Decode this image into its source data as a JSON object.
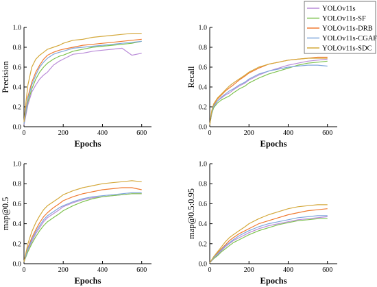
{
  "chart_data": [
    {
      "type": "line",
      "xlabel": "Epochs",
      "ylabel": "Precision",
      "xlim": [
        0,
        650
      ],
      "ylim": [
        0,
        1.0
      ],
      "xticks": [
        "0",
        "200",
        "400",
        "600"
      ],
      "yticks": [
        "0.0",
        "0.2",
        "0.4",
        "0.6",
        "0.8",
        "1.0"
      ],
      "series": [
        {
          "name": "YOLOv11s",
          "color": "#b98bd8",
          "x": [
            0,
            10,
            20,
            40,
            60,
            80,
            100,
            120,
            150,
            180,
            200,
            250,
            300,
            350,
            400,
            450,
            500,
            550,
            600
          ],
          "y": [
            0.02,
            0.12,
            0.22,
            0.35,
            0.42,
            0.48,
            0.52,
            0.55,
            0.62,
            0.66,
            0.68,
            0.73,
            0.74,
            0.76,
            0.77,
            0.78,
            0.79,
            0.72,
            0.74
          ]
        },
        {
          "name": "YOLOv11s-SF",
          "color": "#7ec24f",
          "x": [
            0,
            10,
            20,
            40,
            60,
            80,
            100,
            120,
            150,
            180,
            200,
            250,
            300,
            350,
            400,
            450,
            500,
            550,
            600
          ],
          "y": [
            0.03,
            0.15,
            0.25,
            0.38,
            0.48,
            0.55,
            0.6,
            0.64,
            0.68,
            0.71,
            0.72,
            0.76,
            0.78,
            0.8,
            0.81,
            0.82,
            0.83,
            0.84,
            0.86
          ]
        },
        {
          "name": "YOLOv11s-DRB",
          "color": "#f07a30",
          "x": [
            0,
            10,
            20,
            40,
            60,
            80,
            100,
            120,
            150,
            180,
            200,
            250,
            300,
            350,
            400,
            450,
            500,
            550,
            600
          ],
          "y": [
            0.04,
            0.18,
            0.3,
            0.45,
            0.55,
            0.62,
            0.68,
            0.72,
            0.75,
            0.77,
            0.78,
            0.8,
            0.82,
            0.83,
            0.84,
            0.85,
            0.86,
            0.87,
            0.88
          ]
        },
        {
          "name": "YOLOv11s-CGAF",
          "color": "#7fa6dc",
          "x": [
            0,
            10,
            20,
            40,
            60,
            80,
            100,
            120,
            150,
            180,
            200,
            250,
            300,
            350,
            400,
            450,
            500,
            550,
            600
          ],
          "y": [
            0.03,
            0.16,
            0.28,
            0.42,
            0.52,
            0.6,
            0.65,
            0.69,
            0.73,
            0.75,
            0.76,
            0.79,
            0.8,
            0.81,
            0.82,
            0.83,
            0.84,
            0.85,
            0.86
          ]
        },
        {
          "name": "YOLOv11s-SDC",
          "color": "#d4a83a",
          "x": [
            0,
            10,
            20,
            40,
            60,
            80,
            100,
            120,
            150,
            180,
            200,
            250,
            300,
            350,
            400,
            450,
            500,
            550,
            600
          ],
          "y": [
            0.05,
            0.25,
            0.42,
            0.6,
            0.68,
            0.72,
            0.75,
            0.78,
            0.8,
            0.82,
            0.84,
            0.87,
            0.88,
            0.9,
            0.91,
            0.92,
            0.93,
            0.94,
            0.94
          ]
        }
      ]
    },
    {
      "type": "line",
      "xlabel": "Epochs",
      "ylabel": "Recall",
      "xlim": [
        0,
        650
      ],
      "ylim": [
        0,
        1.0
      ],
      "xticks": [
        "0",
        "200",
        "400",
        "600"
      ],
      "yticks": [
        "0.0",
        "0.2",
        "0.4",
        "0.6",
        "0.8",
        "1.0"
      ],
      "series": [
        {
          "name": "YOLOv11s",
          "color": "#b98bd8",
          "x": [
            0,
            10,
            20,
            40,
            60,
            80,
            100,
            120,
            150,
            180,
            200,
            250,
            300,
            350,
            400,
            450,
            500,
            550,
            600
          ],
          "y": [
            0.02,
            0.14,
            0.2,
            0.26,
            0.29,
            0.32,
            0.34,
            0.37,
            0.41,
            0.44,
            0.47,
            0.52,
            0.56,
            0.59,
            0.62,
            0.64,
            0.66,
            0.67,
            0.68
          ]
        },
        {
          "name": "YOLOv11s-SF",
          "color": "#7ec24f",
          "x": [
            0,
            10,
            20,
            40,
            60,
            80,
            100,
            120,
            150,
            180,
            200,
            250,
            300,
            350,
            400,
            450,
            500,
            550,
            600
          ],
          "y": [
            0.02,
            0.13,
            0.19,
            0.24,
            0.27,
            0.29,
            0.31,
            0.34,
            0.38,
            0.41,
            0.44,
            0.49,
            0.53,
            0.56,
            0.59,
            0.62,
            0.64,
            0.65,
            0.66
          ]
        },
        {
          "name": "YOLOv11s-DRB",
          "color": "#f07a30",
          "x": [
            0,
            10,
            20,
            40,
            60,
            80,
            100,
            120,
            150,
            180,
            200,
            250,
            300,
            350,
            400,
            450,
            500,
            550,
            600
          ],
          "y": [
            0.02,
            0.15,
            0.22,
            0.28,
            0.32,
            0.36,
            0.39,
            0.42,
            0.47,
            0.51,
            0.54,
            0.59,
            0.63,
            0.65,
            0.67,
            0.68,
            0.69,
            0.7,
            0.7
          ]
        },
        {
          "name": "YOLOv11s-CGAF",
          "color": "#7fa6dc",
          "x": [
            0,
            10,
            20,
            40,
            60,
            80,
            100,
            120,
            150,
            180,
            200,
            250,
            300,
            350,
            400,
            450,
            500,
            550,
            600
          ],
          "y": [
            0.02,
            0.14,
            0.21,
            0.26,
            0.3,
            0.33,
            0.36,
            0.38,
            0.42,
            0.45,
            0.48,
            0.53,
            0.56,
            0.58,
            0.6,
            0.61,
            0.62,
            0.62,
            0.61
          ]
        },
        {
          "name": "YOLOv11s-SDC",
          "color": "#d4a83a",
          "x": [
            0,
            10,
            20,
            40,
            60,
            80,
            100,
            120,
            150,
            180,
            200,
            250,
            300,
            350,
            400,
            450,
            500,
            550,
            600
          ],
          "y": [
            0.02,
            0.16,
            0.23,
            0.29,
            0.33,
            0.37,
            0.41,
            0.44,
            0.48,
            0.52,
            0.55,
            0.6,
            0.63,
            0.65,
            0.67,
            0.68,
            0.69,
            0.69,
            0.69
          ]
        }
      ]
    },
    {
      "type": "line",
      "xlabel": "Epochs",
      "ylabel": "map@0.5",
      "xlim": [
        0,
        650
      ],
      "ylim": [
        0,
        1.0
      ],
      "xticks": [
        "0",
        "200",
        "400",
        "600"
      ],
      "yticks": [
        "0.0",
        "0.2",
        "0.4",
        "0.6",
        "0.8",
        "1.0"
      ],
      "series": [
        {
          "name": "YOLOv11s",
          "color": "#b98bd8",
          "x": [
            0,
            10,
            20,
            40,
            60,
            80,
            100,
            120,
            150,
            180,
            200,
            250,
            300,
            350,
            400,
            450,
            500,
            550,
            600
          ],
          "y": [
            0.02,
            0.08,
            0.14,
            0.22,
            0.3,
            0.36,
            0.42,
            0.46,
            0.5,
            0.54,
            0.57,
            0.61,
            0.64,
            0.66,
            0.67,
            0.68,
            0.69,
            0.7,
            0.7
          ]
        },
        {
          "name": "YOLOv11s-SF",
          "color": "#7ec24f",
          "x": [
            0,
            10,
            20,
            40,
            60,
            80,
            100,
            120,
            150,
            180,
            200,
            250,
            300,
            350,
            400,
            450,
            500,
            550,
            600
          ],
          "y": [
            0.02,
            0.07,
            0.12,
            0.2,
            0.27,
            0.33,
            0.38,
            0.42,
            0.46,
            0.5,
            0.53,
            0.58,
            0.62,
            0.65,
            0.67,
            0.68,
            0.69,
            0.7,
            0.7
          ]
        },
        {
          "name": "YOLOv11s-DRB",
          "color": "#f07a30",
          "x": [
            0,
            10,
            20,
            40,
            60,
            80,
            100,
            120,
            150,
            180,
            200,
            250,
            300,
            350,
            400,
            450,
            500,
            550,
            600
          ],
          "y": [
            0.02,
            0.09,
            0.16,
            0.26,
            0.34,
            0.41,
            0.47,
            0.51,
            0.56,
            0.6,
            0.63,
            0.67,
            0.7,
            0.72,
            0.74,
            0.75,
            0.76,
            0.76,
            0.74
          ]
        },
        {
          "name": "YOLOv11s-CGAF",
          "color": "#7fa6dc",
          "x": [
            0,
            10,
            20,
            40,
            60,
            80,
            100,
            120,
            150,
            180,
            200,
            250,
            300,
            350,
            400,
            450,
            500,
            550,
            600
          ],
          "y": [
            0.02,
            0.08,
            0.15,
            0.24,
            0.32,
            0.38,
            0.44,
            0.48,
            0.52,
            0.56,
            0.58,
            0.62,
            0.65,
            0.67,
            0.68,
            0.69,
            0.7,
            0.71,
            0.71
          ]
        },
        {
          "name": "YOLOv11s-SDC",
          "color": "#d4a83a",
          "x": [
            0,
            10,
            20,
            40,
            60,
            80,
            100,
            120,
            150,
            180,
            200,
            250,
            300,
            350,
            400,
            450,
            500,
            550,
            600
          ],
          "y": [
            0.02,
            0.11,
            0.2,
            0.32,
            0.41,
            0.48,
            0.54,
            0.58,
            0.62,
            0.66,
            0.69,
            0.73,
            0.76,
            0.78,
            0.8,
            0.81,
            0.82,
            0.83,
            0.82
          ]
        }
      ]
    },
    {
      "type": "line",
      "xlabel": "Epochs",
      "ylabel": "map@0.5:0.95",
      "xlim": [
        0,
        650
      ],
      "ylim": [
        0,
        1.0
      ],
      "xticks": [
        "0",
        "200",
        "400",
        "600"
      ],
      "yticks": [
        "0.0",
        "0.2",
        "0.4",
        "0.6",
        "0.8",
        "1.0"
      ],
      "series": [
        {
          "name": "YOLOv11s",
          "color": "#b98bd8",
          "x": [
            0,
            10,
            20,
            40,
            60,
            80,
            100,
            120,
            150,
            180,
            200,
            250,
            300,
            350,
            400,
            450,
            500,
            550,
            600
          ],
          "y": [
            0.01,
            0.03,
            0.05,
            0.09,
            0.13,
            0.17,
            0.2,
            0.23,
            0.26,
            0.29,
            0.31,
            0.35,
            0.38,
            0.4,
            0.42,
            0.44,
            0.45,
            0.46,
            0.47
          ]
        },
        {
          "name": "YOLOv11s-SF",
          "color": "#7ec24f",
          "x": [
            0,
            10,
            20,
            40,
            60,
            80,
            100,
            120,
            150,
            180,
            200,
            250,
            300,
            350,
            400,
            450,
            500,
            550,
            600
          ],
          "y": [
            0.01,
            0.03,
            0.05,
            0.08,
            0.12,
            0.15,
            0.18,
            0.21,
            0.24,
            0.27,
            0.29,
            0.33,
            0.36,
            0.39,
            0.41,
            0.43,
            0.44,
            0.45,
            0.45
          ]
        },
        {
          "name": "YOLOv11s-DRB",
          "color": "#f07a30",
          "x": [
            0,
            10,
            20,
            40,
            60,
            80,
            100,
            120,
            150,
            180,
            200,
            250,
            300,
            350,
            400,
            450,
            500,
            550,
            600
          ],
          "y": [
            0.01,
            0.03,
            0.06,
            0.11,
            0.15,
            0.19,
            0.23,
            0.26,
            0.3,
            0.33,
            0.35,
            0.4,
            0.43,
            0.46,
            0.49,
            0.51,
            0.53,
            0.54,
            0.55
          ]
        },
        {
          "name": "YOLOv11s-CGAF",
          "color": "#7fa6dc",
          "x": [
            0,
            10,
            20,
            40,
            60,
            80,
            100,
            120,
            150,
            180,
            200,
            250,
            300,
            350,
            400,
            450,
            500,
            550,
            600
          ],
          "y": [
            0.01,
            0.03,
            0.06,
            0.1,
            0.14,
            0.18,
            0.21,
            0.24,
            0.28,
            0.31,
            0.33,
            0.37,
            0.4,
            0.42,
            0.44,
            0.46,
            0.47,
            0.48,
            0.48
          ]
        },
        {
          "name": "YOLOv11s-SDC",
          "color": "#d4a83a",
          "x": [
            0,
            10,
            20,
            40,
            60,
            80,
            100,
            120,
            150,
            180,
            200,
            250,
            300,
            350,
            400,
            450,
            500,
            550,
            600
          ],
          "y": [
            0.01,
            0.04,
            0.07,
            0.12,
            0.17,
            0.22,
            0.26,
            0.29,
            0.33,
            0.37,
            0.4,
            0.45,
            0.49,
            0.52,
            0.55,
            0.57,
            0.58,
            0.59,
            0.59
          ]
        }
      ]
    }
  ],
  "legend": {
    "placement": "top-right",
    "items": [
      {
        "label": "YOLOv11s",
        "color": "#b98bd8"
      },
      {
        "label": "YOLOv11s-SF",
        "color": "#7ec24f"
      },
      {
        "label": "YOLOv11s-DRB",
        "color": "#f07a30"
      },
      {
        "label": "YOLOv11s-CGAF",
        "color": "#7fa6dc"
      },
      {
        "label": "YOLOv11s-SDC",
        "color": "#d4a83a"
      }
    ]
  }
}
